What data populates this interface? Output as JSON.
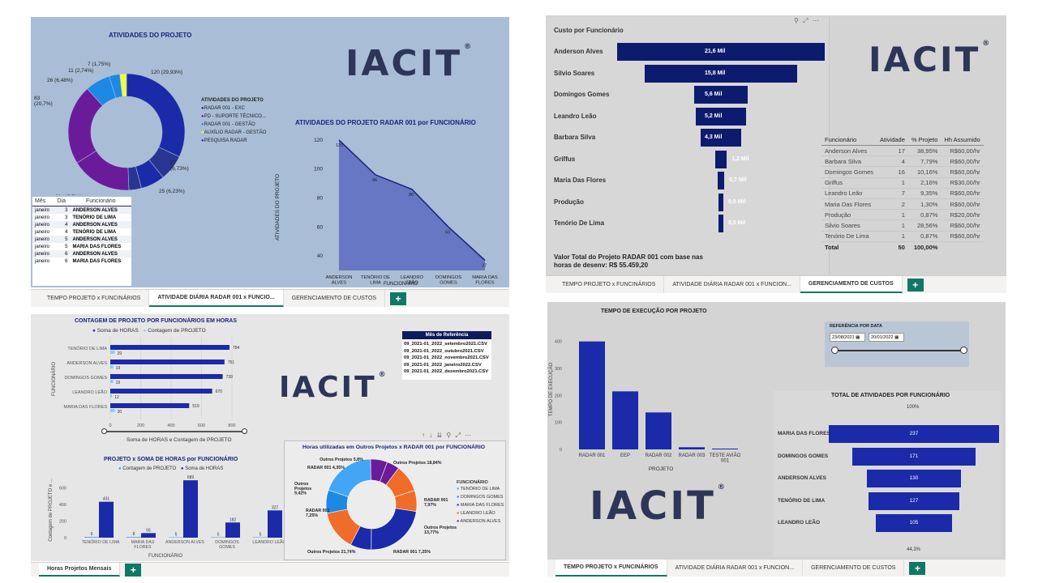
{
  "q1": {
    "donut_title": "ATIVIDADES DO PROJETO",
    "donut_labels": [
      "120 (29,93%)",
      "27\n(6,73%)",
      "25 (6,23%)",
      "13 (3,24%)",
      "63 (15,71%)",
      "83\n(20,7%)",
      "26 (6,48%)",
      "11 (2,74%)",
      "7 (1,75%)"
    ],
    "legend_title": "ATIVIDADES DO PROJETO",
    "legend": [
      {
        "label": "RADAR 001 - EXC",
        "color": "#1a2aa8"
      },
      {
        "label": "PD - SUPORTE TÉCNICO...",
        "color": "#6a1b9a"
      },
      {
        "label": "RADAR 001 - GESTÃO",
        "color": "#1e88e5"
      },
      {
        "label": "AUXÍLIO RADAR - GESTÃO",
        "color": "#eeff41"
      },
      {
        "label": "PESQUISA RADAR",
        "color": "#283593"
      }
    ],
    "area_title": "ATIVIDADES DO PROJETO RADAR 001 por FUNCIONÁRIO",
    "area_ylabel": "ATIVIDADES DO PROJETO",
    "area_xlabel": "FUNCIONÁRIO",
    "area_yticks": [
      "120",
      "100",
      "80",
      "60",
      "40"
    ],
    "area_points": [
      {
        "name": "ANDERSON\nALVES",
        "value": 120
      },
      {
        "name": "TENÓRIO DE\nLIMA",
        "value": 96
      },
      {
        "name": "LEANDRO\nLEÃO",
        "value": 86
      },
      {
        "name": "DOMINGOS\nGOMES",
        "value": 60
      },
      {
        "name": "MARIA DAS\nFLORES",
        "value": 37
      }
    ],
    "table_headers": [
      "Mês",
      "Dia",
      "Funcionário"
    ],
    "table_rows": [
      [
        "janeiro",
        "3",
        "ANDERSON ALVES"
      ],
      [
        "janeiro",
        "3",
        "TENÓRIO DE LIMA"
      ],
      [
        "janeiro",
        "4",
        "ANDERSON ALVES"
      ],
      [
        "janeiro",
        "4",
        "TENÓRIO DE LIMA"
      ],
      [
        "janeiro",
        "5",
        "ANDERSON ALVES"
      ],
      [
        "janeiro",
        "5",
        "MARIA DAS FLORES"
      ],
      [
        "janeiro",
        "6",
        "ANDERSON ALVES"
      ],
      [
        "janeiro",
        "6",
        "MARIA DAS FLORES"
      ]
    ],
    "tabs": [
      "TEMPO PROJETO x FUNCINÁRIOS",
      "ATIVIDADE DIÁRIA RADAR 001 x FUNCIO...",
      "GERENCIAMENTO DE CUSTOS"
    ],
    "add": "+"
  },
  "q2": {
    "funnel_title": "Custo por Funcionário",
    "funnel": [
      {
        "name": "Anderson Alves",
        "value": 21.6,
        "label": "21,6 Mil"
      },
      {
        "name": "Silvio Soares",
        "value": 15.8,
        "label": "15,8 Mil"
      },
      {
        "name": "Domingos Gomes",
        "value": 5.6,
        "label": "5,6 Mil"
      },
      {
        "name": "Leandro Leão",
        "value": 5.2,
        "label": "5,2 Mil"
      },
      {
        "name": "Barbara Silva",
        "value": 4.3,
        "label": "4,3 Mil"
      },
      {
        "name": "Griffus",
        "value": 1.2,
        "label": "1,2 Mil"
      },
      {
        "name": "Maria Das Flores",
        "value": 0.7,
        "label": "0,7 Mil"
      },
      {
        "name": "Produção",
        "value": 0.5,
        "label": "0,5 Mil"
      },
      {
        "name": "Tenório De Lima",
        "value": 0.5,
        "label": "0,5 Mil"
      }
    ],
    "total_text": "Valor Total do Projeto RADAR 001 com base nas horas de desenv: R$ 55.459,20",
    "table_headers": [
      "Funcionário",
      "Atividade",
      "% Projeto",
      "Hh Assumido"
    ],
    "table_rows": [
      [
        "Anderson Alves",
        "17",
        "38,95%",
        "R$60,00/hr"
      ],
      [
        "Barbara Silva",
        "4",
        "7,79%",
        "R$60,00/hr"
      ],
      [
        "Domingos Gomes",
        "16",
        "10,16%",
        "R$60,00/hr"
      ],
      [
        "Griffus",
        "1",
        "2,16%",
        "R$30,00/hr"
      ],
      [
        "Leandro Leão",
        "7",
        "9,35%",
        "R$60,00/hr"
      ],
      [
        "Maria Das Flores",
        "2",
        "1,30%",
        "R$60,00/hr"
      ],
      [
        "Produção",
        "1",
        "0,87%",
        "R$20,00/hr"
      ],
      [
        "Silvio Soares",
        "1",
        "28,56%",
        "R$60,00/hr"
      ],
      [
        "Tenório De Lima",
        "1",
        "0,87%",
        "R$60,00/hr"
      ]
    ],
    "table_total": [
      "Total",
      "50",
      "100,00%",
      ""
    ],
    "tabs": [
      "TEMPO PROJETO x FUNCINÁRIOS",
      "ATIVIDADE DIÁRIA RADAR 001 x FUNCION...",
      "GERENCIAMENTO DE CUSTOS"
    ],
    "add": "+"
  },
  "q3": {
    "hbar_title": "CONTAGEM DE PROJETO POR FUNCIONÁRIOS EM HORAS",
    "hbar_legend": [
      "Soma de HORAS",
      "Contagem de PROJETO"
    ],
    "hbar_ylabel": "FUNCIONÁRIO",
    "hbar_xlabel": "Soma de HORAS e Contagem de PROJETO",
    "hbar_xticks": [
      "0",
      "200",
      "400",
      "600",
      "800"
    ],
    "hbar": [
      {
        "name": "TENÓRIO DE LIMA",
        "horas": 784,
        "contagem": 29
      },
      {
        "name": "ANDERSON ALVES",
        "horas": 751,
        "contagem": 19
      },
      {
        "name": "DOMINGOS GOMES",
        "horas": 739,
        "contagem": 19
      },
      {
        "name": "LEANDRO LEÃO",
        "horas": 670,
        "contagem": 12
      },
      {
        "name": "MARIA DAS FLORES",
        "horas": 519,
        "contagem": 30
      }
    ],
    "slicer_title": "Mês de Referência",
    "slicer_items": [
      "09_2021-01_2022_setembro2021.CSV",
      "09_2021-01_2022_outubro2021.CSV",
      "09_2021-01_2022_novembro2021.CSV",
      "09_2021-01_2022_janeiro2022.CSV",
      "09_2021-01_2022_dezembro2021.CSV"
    ],
    "col_title": "PROJETO x SOMA DE HORAS por FUNCIONÁRIO",
    "col_legend": [
      "Contagem de PROJETO",
      "Soma de HORAS"
    ],
    "col_ylabel": "Contagem de PROJETO e ...",
    "col_xlabel": "FUNCIONÁRIO",
    "col_yticks": [
      "600",
      "400",
      "200",
      "0"
    ],
    "cols": [
      {
        "name": "TENÓRIO DE LIMA",
        "contagem": 9,
        "horas": 431
      },
      {
        "name": "MARIA DAS\nFLORES",
        "contagem": 8,
        "horas": 55
      },
      {
        "name": "ANDERSON ALVES",
        "contagem": 5,
        "horas": 689
      },
      {
        "name": "DOMINGOS\nGOMES",
        "contagem": 5,
        "horas": 182
      },
      {
        "name": "LEANDRO LEÃO",
        "contagem": 5,
        "horas": 327
      }
    ],
    "donut_title": "Horas utilizadas em Outros Projetos x RADAR 001 por FUNCIONÁRIO",
    "donut_labels": [
      "Outros Projetos 5,8%",
      "RADAR 001 4,35%",
      "Outros\nProjetos\n9,42%",
      "RADAR 001\n7,25%",
      "Outros Projetos 21,74%",
      "RADAR 001 7,25%",
      "Outros Projetos\n13,77%",
      "RADAR 001\n7,97%",
      "Outros Projetos 18,84%"
    ],
    "donut_legend_title": "FUNCIONÁRIO",
    "donut_legend": [
      {
        "label": "TENÓRIO DE LIMA",
        "color": "#42a5f5"
      },
      {
        "label": "DOMINGOS GOMES",
        "color": "#1e88e5"
      },
      {
        "label": "MARIA DAS FLORES",
        "color": "#1a2aa8"
      },
      {
        "label": "LEANDRO LEÃO",
        "color": "#ef6c2a"
      },
      {
        "label": "ANDERSON ALVES",
        "color": "#6a1b9a"
      }
    ],
    "tabs": [
      "Horas Projetos Mensais"
    ],
    "add": "+"
  },
  "q4": {
    "col_title": "TEMPO DE EXECUÇÃO POR PROJETO",
    "col_ylabel": "TEMPO DE EXECUÇÃO",
    "col_xlabel": "PROJETO",
    "col_yticks": [
      "400",
      "300",
      "200",
      "100",
      "0"
    ],
    "cols": [
      {
        "name": "RADAR 001",
        "value": 400
      },
      {
        "name": "EEP",
        "value": 215
      },
      {
        "name": "RADAR 002",
        "value": 137
      },
      {
        "name": "RADAR 003",
        "value": 8
      },
      {
        "name": "TESTE AVIÃO\n001",
        "value": 3
      }
    ],
    "slicer_title": "REFERÊNCIA POR DATA",
    "date_from": "23/08/2021",
    "date_to": "20/01/2022",
    "funnel_title": "TOTAL DE ATIVIDADES POR FUNCIONÁRIO",
    "funnel_top": "100%",
    "funnel_bottom": "44,3%",
    "funnel": [
      {
        "name": "MARIA DAS FLORES",
        "value": 237
      },
      {
        "name": "DOMINGOS GOMES",
        "value": 171
      },
      {
        "name": "ANDERSON ALVES",
        "value": 130
      },
      {
        "name": "TENÓRIO DE LIMA",
        "value": 127
      },
      {
        "name": "LEANDRO LEÃO",
        "value": 105
      }
    ],
    "tabs": [
      "TEMPO PROJETO x FUNCINÁRIOS",
      "ATIVIDADE DIÁRIA RADAR 001 x FUNCION...",
      "GERENCIAMENTO DE CUSTOS"
    ],
    "add": "+"
  },
  "logo_text": "IACIT",
  "logo_reg": "®"
}
